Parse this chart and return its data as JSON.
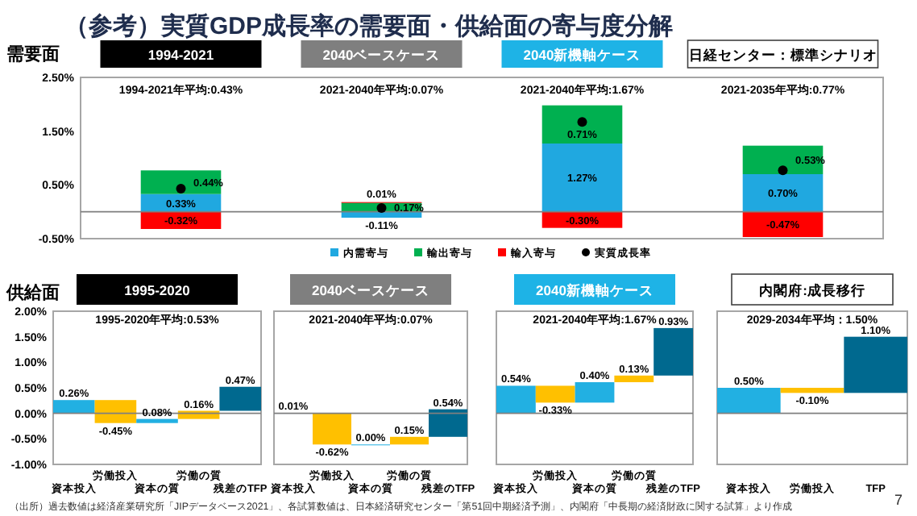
{
  "chart_data": [
    {
      "type": "bar",
      "stacked": true,
      "title": "（参考）実質GDP成長率の需要面・供給面の寄与度分解",
      "ylabel": "需要面",
      "categories": [
        "1994-2021",
        "2040ベースケース",
        "2040新機軸ケース",
        "日経センター：標準シナリオ"
      ],
      "series": [
        {
          "name": "内需寄与",
          "color": "#20a8e0",
          "values": [
            0.33,
            -0.11,
            1.27,
            0.7
          ],
          "value_labels": [
            "0.33%",
            "-0.11%",
            "1.27%",
            "0.70%"
          ]
        },
        {
          "name": "輸出寄与",
          "color": "#00b050",
          "values": [
            0.44,
            0.17,
            0.71,
            0.53
          ],
          "value_labels": [
            "0.44%",
            "0.17%",
            "0.71%",
            "0.53%"
          ]
        },
        {
          "name": "輸入寄与",
          "color": "#ff0000",
          "values": [
            -0.32,
            0.01,
            -0.3,
            -0.47
          ],
          "value_labels": [
            "-0.32%",
            "0.01%",
            "-0.30%",
            "-0.47%"
          ]
        },
        {
          "name": "実質成長率",
          "type": "scatter",
          "marker": "circle",
          "color": "#000000",
          "values": [
            0.43,
            0.07,
            1.67,
            0.77
          ]
        }
      ],
      "ylim": [
        -0.5,
        2.5
      ],
      "yticks": [
        {
          "value": -0.5,
          "label": "-0.50%"
        },
        {
          "value": 0.5,
          "label": "0.50%"
        },
        {
          "value": 1.5,
          "label": "1.50%"
        },
        {
          "value": 2.5,
          "label": "2.50%"
        }
      ],
      "legend": "bottom",
      "annotations": [
        "1994-2021年平均:0.43%",
        "2021-2040年平均:0.07%",
        "2021-2040年平均:1.67%",
        "2021-2035年平均:0.77%"
      ]
    },
    {
      "type": "bar",
      "title": "1995-2020",
      "subtitle": "1995-2020年平均:0.53%",
      "ylabel": "供給面",
      "categories": [
        "資本投入",
        "労働投入",
        "資本の質",
        "労働の質",
        "残差のTFP"
      ],
      "values": [
        0.26,
        -0.45,
        0.08,
        0.16,
        0.47
      ],
      "base": [
        0,
        0.26,
        -0.19,
        -0.11,
        0.05
      ],
      "colors": [
        "#22b0e2",
        "#ffc000",
        "#22b0e2",
        "#ffc000",
        "#00698f"
      ],
      "value_labels": [
        "0.26%",
        "-0.45%",
        "0.08%",
        "0.16%",
        "0.47%"
      ],
      "ylim": [
        -1,
        2
      ],
      "yticks": [
        {
          "value": -1,
          "label": "-1.00%"
        },
        {
          "value": -0.5,
          "label": "-0.50%"
        },
        {
          "value": 0,
          "label": "0.00%"
        },
        {
          "value": 0.5,
          "label": "0.50%"
        },
        {
          "value": 1,
          "label": "1.00%"
        },
        {
          "value": 1.5,
          "label": "1.50%"
        },
        {
          "value": 2,
          "label": "2.00%"
        }
      ]
    },
    {
      "type": "bar",
      "title": "2040ベースケース",
      "subtitle": "2021-2040年平均:0.07%",
      "categories": [
        "資本投入",
        "労働投入",
        "資本の質",
        "労働の質",
        "残差のTFP"
      ],
      "values": [
        0.01,
        -0.62,
        0.0,
        0.15,
        0.54
      ],
      "base": [
        0,
        0.01,
        -0.61,
        -0.61,
        -0.46
      ],
      "colors": [
        "#22b0e2",
        "#ffc000",
        "#22b0e2",
        "#ffc000",
        "#00698f"
      ],
      "value_labels": [
        "0.01%",
        "-0.62%",
        "0.00%",
        "0.15%",
        "0.54%"
      ],
      "ylim": [
        -1,
        2
      ],
      "tick_labels": "x"
    },
    {
      "type": "bar",
      "title": "2040新機軸ケース",
      "subtitle": "2021-2040年平均:1.67%",
      "categories": [
        "資本投入",
        "労働投入",
        "資本の質",
        "労働の質",
        "残差のTFP"
      ],
      "values": [
        0.54,
        -0.33,
        0.4,
        0.13,
        0.93
      ],
      "base": [
        0,
        0.54,
        0.21,
        0.61,
        0.74
      ],
      "colors": [
        "#22b0e2",
        "#ffc000",
        "#22b0e2",
        "#ffc000",
        "#00698f"
      ],
      "value_labels": [
        "0.54%",
        "-0.33%",
        "0.40%",
        "0.13%",
        "0.93%"
      ],
      "ylim": [
        -1,
        2
      ],
      "tick_labels": "x"
    },
    {
      "type": "bar",
      "title": "内閣府:成長移行",
      "subtitle": "2029-2034年平均：1.50%",
      "categories": [
        "資本投入",
        "労働投入",
        "TFP"
      ],
      "values": [
        0.5,
        -0.1,
        1.1
      ],
      "base": [
        0,
        0.5,
        0.4
      ],
      "colors": [
        "#22b0e2",
        "#ffc000",
        "#00698f"
      ],
      "value_labels": [
        "0.50%",
        "-0.10%",
        "1.10%"
      ],
      "ylim": [
        -1,
        2
      ],
      "tick_labels": "x",
      "annotations": [
        "（出所）過去数値は経済産業研究所「JIPデータベース2021」、各試算数値は、日本経済研究センター「第51回中期経済予測」、内閣府「中長期の経済財政に関する試算」より作成",
        "7"
      ]
    }
  ]
}
